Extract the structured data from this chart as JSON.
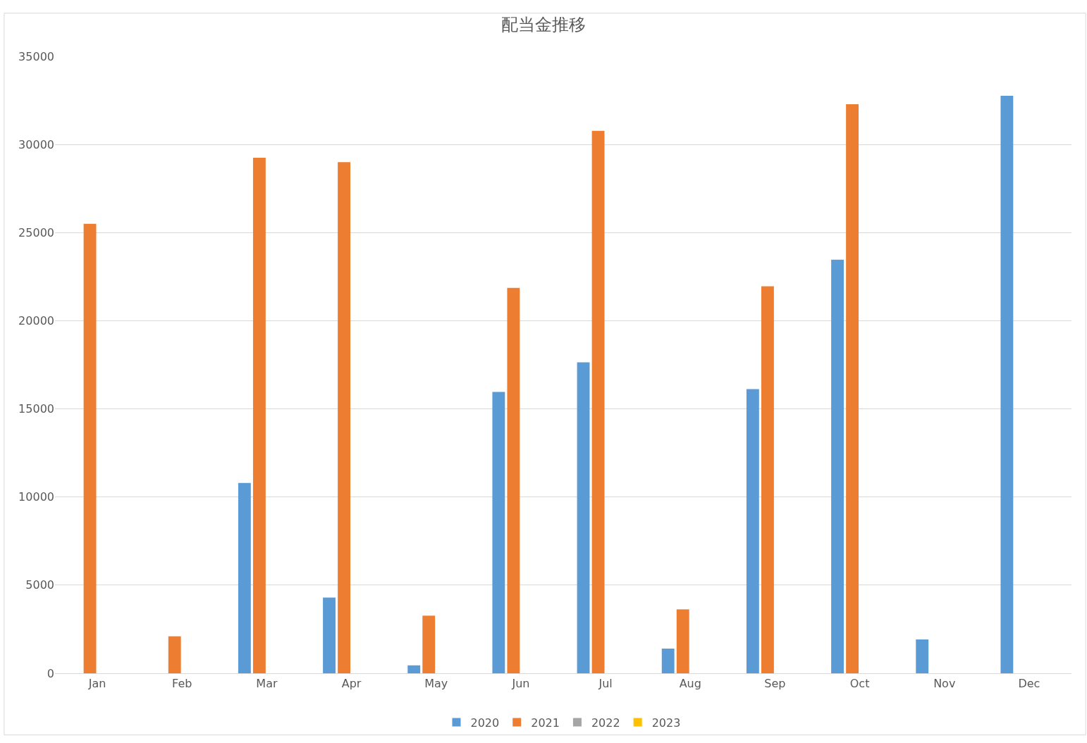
{
  "chart_data": {
    "type": "bar",
    "title": "配当金推移",
    "categories": [
      "Jan",
      "Feb",
      "Mar",
      "Apr",
      "May",
      "Jun",
      "Jul",
      "Aug",
      "Sep",
      "Oct",
      "Nov",
      "Dec"
    ],
    "series": [
      {
        "name": "2020",
        "color": "#5b9bd5",
        "values": [
          null,
          null,
          10800,
          4300,
          450,
          15960,
          17640,
          1400,
          16120,
          23460,
          1920,
          32760
        ]
      },
      {
        "name": "2021",
        "color": "#ed7d31",
        "values": [
          25500,
          2100,
          29250,
          29000,
          3270,
          21870,
          30770,
          3630,
          21950,
          32280,
          null,
          null
        ]
      },
      {
        "name": "2022",
        "color": "#a5a5a5",
        "values": [
          null,
          null,
          null,
          null,
          null,
          null,
          null,
          null,
          null,
          null,
          null,
          null
        ]
      },
      {
        "name": "2023",
        "color": "#ffc000",
        "values": [
          null,
          null,
          null,
          null,
          null,
          null,
          null,
          null,
          null,
          null,
          null,
          null
        ]
      }
    ],
    "ylim": [
      0,
      35000
    ],
    "yticks": [
      0,
      5000,
      10000,
      15000,
      20000,
      25000,
      30000,
      35000
    ],
    "grid": "y",
    "legend": "bottom"
  }
}
